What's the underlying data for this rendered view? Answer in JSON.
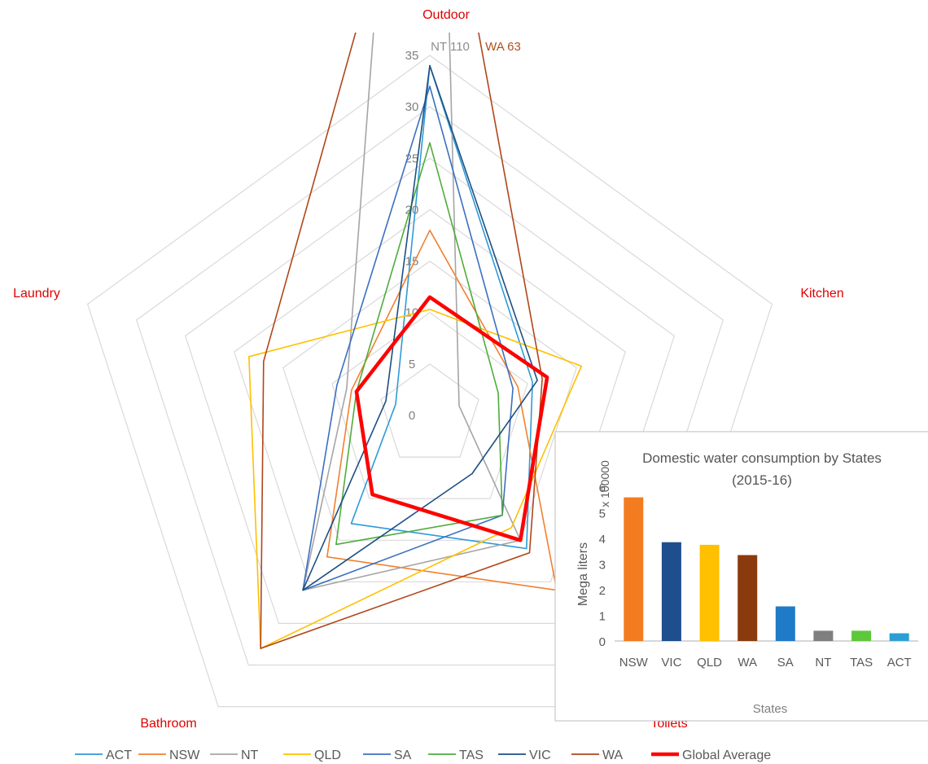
{
  "chart_data": [
    {
      "type": "radar",
      "axes": [
        "Outdoor",
        "Kitchen",
        "Toilets",
        "Bathroom",
        "Laundry"
      ],
      "rlim": [
        0,
        35
      ],
      "ticks": [
        0,
        5,
        10,
        15,
        20,
        25,
        30,
        35
      ],
      "tick_labels": [
        "0",
        "5",
        "10",
        "15",
        "20",
        "25",
        "30",
        "35"
      ],
      "grid": true,
      "legend_position": "bottom",
      "axis_label_color": "#e00000",
      "offscale_annotations": [
        {
          "series": "NT",
          "text": "NT 110",
          "color": "#8c8c8c"
        },
        {
          "series": "WA",
          "text": "WA 63",
          "color": "#b05020"
        }
      ],
      "series": [
        {
          "name": "ACT",
          "color": "#2e9ad8",
          "width": 1.6,
          "values": [
            34,
            10.5,
            16,
            13,
            3.5
          ]
        },
        {
          "name": "NSW",
          "color": "#f28030",
          "width": 1.6,
          "values": [
            18,
            9,
            21,
            17,
            8
          ]
        },
        {
          "name": "NT",
          "color": "#a5a5a5",
          "width": 1.6,
          "values": [
            110,
            3,
            15,
            21,
            8.5
          ]
        },
        {
          "name": "QLD",
          "color": "#ffc000",
          "width": 1.6,
          "values": [
            10.3,
            15.5,
            13.5,
            28,
            18.5
          ]
        },
        {
          "name": "SA",
          "color": "#3b6fbf",
          "width": 1.6,
          "values": [
            32,
            8.5,
            12,
            21,
            9.5
          ]
        },
        {
          "name": "TAS",
          "color": "#4eac3c",
          "width": 1.6,
          "values": [
            26.5,
            7,
            12,
            15.5,
            7.5
          ]
        },
        {
          "name": "VIC",
          "color": "#1d4f82",
          "width": 1.6,
          "values": [
            34,
            11,
            7,
            21,
            4.5
          ]
        },
        {
          "name": "WA",
          "color": "#b0461a",
          "width": 1.6,
          "values": [
            63,
            11.5,
            16.5,
            28,
            17
          ]
        },
        {
          "name": "Global Average",
          "color": "#ff0000",
          "width": 4.5,
          "values": [
            11.5,
            12,
            15,
            9.5,
            7.5
          ]
        }
      ]
    },
    {
      "type": "bar",
      "title": "Domestic water consumption by States (2015-16)",
      "title_lines": [
        "Domestic water consumption by States",
        "(2015-16)"
      ],
      "categories": [
        "NSW",
        "VIC",
        "QLD",
        "WA",
        "SA",
        "NT",
        "TAS",
        "ACT"
      ],
      "values": [
        5.6,
        3.85,
        3.75,
        3.35,
        1.35,
        0.4,
        0.4,
        0.3
      ],
      "colors": [
        "#f47c20",
        "#1f4e8c",
        "#ffc000",
        "#8b3a0e",
        "#1f7bc7",
        "#7f7f7f",
        "#5cc83a",
        "#2a9fd6"
      ],
      "xlabel": "States",
      "ylabel": "Mega liters",
      "yunit": "x 100000",
      "ylim": [
        0,
        6
      ],
      "yticks": [
        "0",
        "1",
        "2",
        "3",
        "4",
        "5",
        "6"
      ]
    }
  ]
}
